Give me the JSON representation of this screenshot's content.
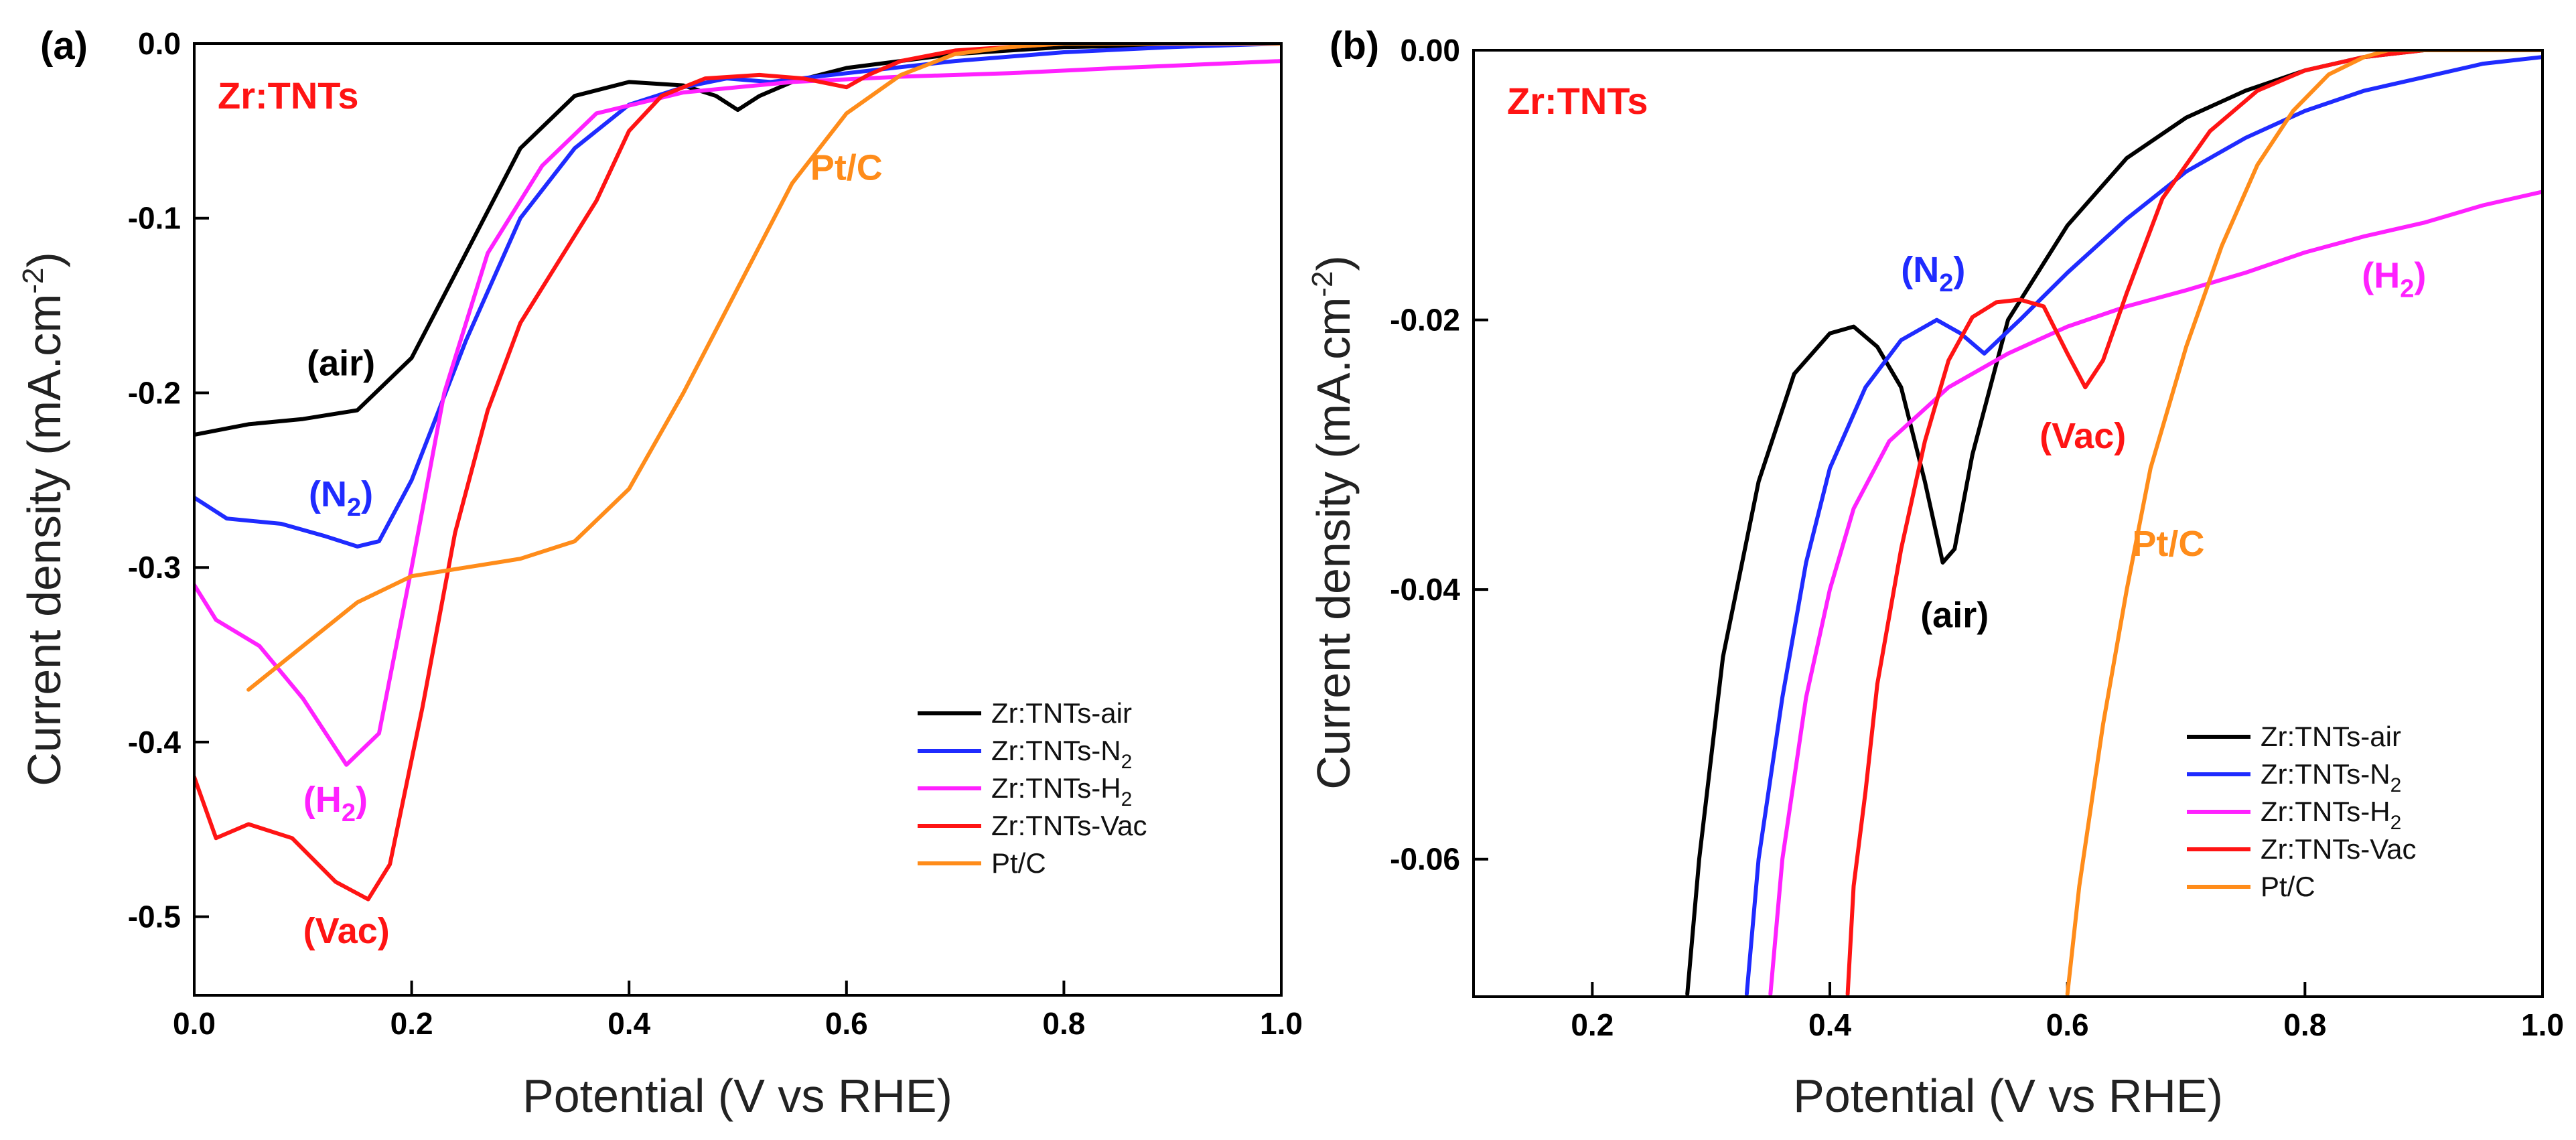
{
  "chart_data": [
    {
      "type": "line",
      "panel_label": "(a)",
      "sample_title": "Zr:TNTs",
      "xlabel": "Potential (V vs RHE)",
      "ylabel": "Current density (mA.cm",
      "ylabel_sup": "-2",
      "ylabel_end": ")",
      "xlim": [
        0.0,
        1.0
      ],
      "ylim": [
        -0.545,
        0.0
      ],
      "xticks": [
        {
          "value": 0.0,
          "label": "0.0"
        },
        {
          "value": 0.2,
          "label": "0.2"
        },
        {
          "value": 0.4,
          "label": "0.4"
        },
        {
          "value": 0.6,
          "label": "0.6"
        },
        {
          "value": 0.8,
          "label": "0.8"
        },
        {
          "value": 1.0,
          "label": "1.0"
        }
      ],
      "yticks": [
        {
          "value": 0.0,
          "label": "0.0"
        },
        {
          "value": -0.1,
          "label": "-0.1"
        },
        {
          "value": -0.2,
          "label": "-0.2"
        },
        {
          "value": -0.3,
          "label": "-0.3"
        },
        {
          "value": -0.4,
          "label": "-0.4"
        },
        {
          "value": -0.5,
          "label": "-0.5"
        }
      ],
      "legend_position": "bottom-right",
      "series": [
        {
          "name": "Zr:TNTs-air",
          "label_main": "Zr:TNTs-air",
          "label_sub": "",
          "color": "#000000",
          "x": [
            0.0,
            0.05,
            0.1,
            0.15,
            0.2,
            0.25,
            0.3,
            0.35,
            0.4,
            0.45,
            0.48,
            0.5,
            0.52,
            0.55,
            0.6,
            0.7,
            0.8,
            0.9,
            1.0
          ],
          "y": [
            -0.224,
            -0.218,
            -0.215,
            -0.21,
            -0.18,
            -0.12,
            -0.06,
            -0.03,
            -0.022,
            -0.024,
            -0.03,
            -0.038,
            -0.03,
            -0.022,
            -0.014,
            -0.006,
            -0.002,
            -0.001,
            0.0
          ]
        },
        {
          "name": "Zr:TNTs-N2",
          "label_main": "Zr:TNTs-N",
          "label_sub": "2",
          "color": "#1f2bff",
          "x": [
            0.0,
            0.03,
            0.08,
            0.12,
            0.15,
            0.17,
            0.2,
            0.25,
            0.3,
            0.35,
            0.4,
            0.45,
            0.49,
            0.53,
            0.6,
            0.7,
            0.8,
            0.9,
            1.0
          ],
          "y": [
            -0.26,
            -0.272,
            -0.275,
            -0.282,
            -0.288,
            -0.285,
            -0.25,
            -0.17,
            -0.1,
            -0.06,
            -0.035,
            -0.025,
            -0.02,
            -0.022,
            -0.017,
            -0.01,
            -0.005,
            -0.002,
            0.0
          ]
        },
        {
          "name": "Zr:TNTs-H2",
          "label_main": "Zr:TNTs-H",
          "label_sub": "2",
          "color": "#ff21ff",
          "x": [
            0.0,
            0.02,
            0.06,
            0.1,
            0.14,
            0.17,
            0.2,
            0.23,
            0.27,
            0.32,
            0.37,
            0.45,
            0.55,
            0.65,
            0.75,
            0.85,
            1.0
          ],
          "y": [
            -0.31,
            -0.33,
            -0.345,
            -0.375,
            -0.413,
            -0.395,
            -0.3,
            -0.2,
            -0.12,
            -0.07,
            -0.04,
            -0.028,
            -0.022,
            -0.019,
            -0.017,
            -0.014,
            -0.01
          ]
        },
        {
          "name": "Zr:TNTs-Vac",
          "label_main": "Zr:TNTs-Vac",
          "label_sub": "",
          "color": "#ff1414",
          "x": [
            0.0,
            0.02,
            0.05,
            0.09,
            0.13,
            0.16,
            0.18,
            0.21,
            0.24,
            0.27,
            0.3,
            0.34,
            0.37,
            0.4,
            0.43,
            0.47,
            0.52,
            0.56,
            0.6,
            0.62,
            0.65,
            0.7,
            0.8,
            0.9,
            1.0
          ],
          "y": [
            -0.42,
            -0.455,
            -0.447,
            -0.455,
            -0.48,
            -0.49,
            -0.47,
            -0.38,
            -0.28,
            -0.21,
            -0.16,
            -0.12,
            -0.09,
            -0.05,
            -0.03,
            -0.02,
            -0.018,
            -0.02,
            -0.025,
            -0.018,
            -0.01,
            -0.004,
            0.0,
            0.0,
            0.0
          ]
        },
        {
          "name": "Pt/C",
          "label_main": "Pt/C",
          "label_sub": "",
          "color": "#ff8c1a",
          "x": [
            0.05,
            0.1,
            0.15,
            0.2,
            0.25,
            0.3,
            0.35,
            0.4,
            0.45,
            0.5,
            0.55,
            0.6,
            0.65,
            0.7,
            0.75,
            0.8,
            0.9,
            1.0
          ],
          "y": [
            -0.37,
            -0.345,
            -0.32,
            -0.305,
            -0.3,
            -0.295,
            -0.285,
            -0.255,
            -0.2,
            -0.14,
            -0.08,
            -0.04,
            -0.018,
            -0.006,
            -0.002,
            0.0,
            0.0,
            0.0
          ]
        }
      ],
      "annotations": [
        {
          "text": "(air)",
          "sub": "",
          "tail": "",
          "x": 0.135,
          "y": -0.19,
          "color": "#000000"
        },
        {
          "text": "(N",
          "sub": "2",
          "tail": ")",
          "x": 0.135,
          "y": -0.265,
          "color": "#1f2bff"
        },
        {
          "text": "(H",
          "sub": "2",
          "tail": ")",
          "x": 0.13,
          "y": -0.44,
          "color": "#ff21ff"
        },
        {
          "text": "(Vac)",
          "sub": "",
          "tail": "",
          "x": 0.14,
          "y": -0.515,
          "color": "#ff1414"
        },
        {
          "text": "Pt/C",
          "sub": "",
          "tail": "",
          "x": 0.6,
          "y": -0.078,
          "color": "#ff8c1a"
        }
      ]
    },
    {
      "type": "line",
      "panel_label": "(b)",
      "sample_title": "Zr:TNTs",
      "xlabel": "Potential (V vs RHE)",
      "ylabel": "Current density (mA.cm",
      "ylabel_sup": "-2",
      "ylabel_end": ")",
      "xlim": [
        0.1,
        1.0
      ],
      "ylim": [
        -0.0702,
        0.0
      ],
      "xticks": [
        {
          "value": 0.2,
          "label": "0.2"
        },
        {
          "value": 0.4,
          "label": "0.4"
        },
        {
          "value": 0.6,
          "label": "0.6"
        },
        {
          "value": 0.8,
          "label": "0.8"
        },
        {
          "value": 1.0,
          "label": "1.0"
        }
      ],
      "yticks": [
        {
          "value": 0.0,
          "label": "0.00"
        },
        {
          "value": -0.02,
          "label": "-0.02"
        },
        {
          "value": -0.04,
          "label": "-0.04"
        },
        {
          "value": -0.06,
          "label": "-0.06"
        }
      ],
      "legend_position": "bottom-right",
      "series": [
        {
          "name": "Zr:TNTs-air",
          "label_main": "Zr:TNTs-air",
          "label_sub": "",
          "color": "#000000",
          "x": [
            0.28,
            0.29,
            0.31,
            0.34,
            0.37,
            0.4,
            0.42,
            0.44,
            0.46,
            0.48,
            0.495,
            0.505,
            0.52,
            0.55,
            0.6,
            0.65,
            0.7,
            0.75,
            0.8,
            0.85,
            0.9,
            1.0
          ],
          "y": [
            -0.07,
            -0.06,
            -0.045,
            -0.032,
            -0.024,
            -0.021,
            -0.0205,
            -0.022,
            -0.025,
            -0.032,
            -0.038,
            -0.037,
            -0.03,
            -0.02,
            -0.013,
            -0.008,
            -0.005,
            -0.003,
            -0.0015,
            -0.0005,
            0.0,
            0.0
          ]
        },
        {
          "name": "Zr:TNTs-N2",
          "label_main": "Zr:TNTs-N",
          "label_sub": "2",
          "color": "#1f2bff",
          "x": [
            0.33,
            0.34,
            0.36,
            0.38,
            0.4,
            0.43,
            0.46,
            0.49,
            0.51,
            0.53,
            0.56,
            0.6,
            0.65,
            0.7,
            0.75,
            0.8,
            0.85,
            0.9,
            0.95,
            1.0
          ],
          "y": [
            -0.07,
            -0.06,
            -0.048,
            -0.038,
            -0.031,
            -0.025,
            -0.0215,
            -0.02,
            -0.021,
            -0.0225,
            -0.02,
            -0.0165,
            -0.0125,
            -0.009,
            -0.0065,
            -0.0045,
            -0.003,
            -0.002,
            -0.001,
            -0.0005
          ]
        },
        {
          "name": "Zr:TNTs-H2",
          "label_main": "Zr:TNTs-H",
          "label_sub": "2",
          "color": "#ff21ff",
          "x": [
            0.35,
            0.36,
            0.38,
            0.4,
            0.42,
            0.45,
            0.5,
            0.55,
            0.6,
            0.65,
            0.7,
            0.75,
            0.8,
            0.85,
            0.9,
            0.95,
            1.0
          ],
          "y": [
            -0.07,
            -0.06,
            -0.048,
            -0.04,
            -0.034,
            -0.029,
            -0.025,
            -0.0225,
            -0.0205,
            -0.019,
            -0.0178,
            -0.0165,
            -0.015,
            -0.0138,
            -0.0128,
            -0.0115,
            -0.0105
          ]
        },
        {
          "name": "Zr:TNTs-Vac",
          "label_main": "Zr:TNTs-Vac",
          "label_sub": "",
          "color": "#ff1414",
          "x": [
            0.415,
            0.42,
            0.43,
            0.44,
            0.46,
            0.48,
            0.5,
            0.52,
            0.54,
            0.56,
            0.58,
            0.6,
            0.615,
            0.63,
            0.65,
            0.68,
            0.72,
            0.76,
            0.8,
            0.85,
            0.9,
            1.0
          ],
          "y": [
            -0.07,
            -0.062,
            -0.055,
            -0.047,
            -0.037,
            -0.029,
            -0.023,
            -0.0198,
            -0.0187,
            -0.0185,
            -0.019,
            -0.0225,
            -0.025,
            -0.023,
            -0.018,
            -0.011,
            -0.006,
            -0.003,
            -0.0015,
            -0.0005,
            0.0,
            0.0
          ]
        },
        {
          "name": "Pt/C",
          "label_main": "Pt/C",
          "label_sub": "",
          "color": "#ff8c1a",
          "x": [
            0.6,
            0.61,
            0.63,
            0.65,
            0.67,
            0.7,
            0.73,
            0.76,
            0.79,
            0.82,
            0.85,
            0.87,
            0.9,
            0.95,
            1.0
          ],
          "y": [
            -0.07,
            -0.062,
            -0.05,
            -0.04,
            -0.031,
            -0.022,
            -0.0145,
            -0.0085,
            -0.0045,
            -0.0018,
            -0.0005,
            0.0,
            0.0,
            0.0,
            0.0
          ]
        }
      ],
      "annotations": [
        {
          "text": "(N",
          "sub": "2",
          "tail": ")",
          "x": 0.487,
          "y": -0.0172,
          "color": "#1f2bff"
        },
        {
          "text": "(H",
          "sub": "2",
          "tail": ")",
          "x": 0.875,
          "y": -0.0176,
          "color": "#ff21ff"
        },
        {
          "text": "(Vac)",
          "sub": "",
          "tail": "",
          "x": 0.613,
          "y": -0.0295,
          "color": "#ff1414"
        },
        {
          "text": "(air)",
          "sub": "",
          "tail": "",
          "x": 0.505,
          "y": -0.0428,
          "color": "#000000"
        },
        {
          "text": "Pt/C",
          "sub": "",
          "tail": "",
          "x": 0.685,
          "y": -0.0375,
          "color": "#ff8c1a"
        }
      ]
    }
  ]
}
